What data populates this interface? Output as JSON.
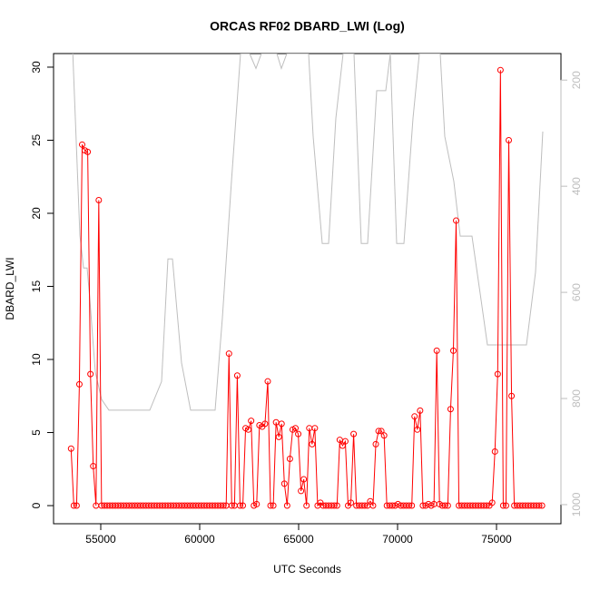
{
  "chart_data": {
    "type": "line",
    "title": "ORCAS RF02 DBARD_LWI (Log)",
    "xlabel": "UTC Seconds",
    "ylabel": "DBARD_LWI",
    "xlim": [
      52615,
      78257
    ],
    "xticks": [
      55000,
      60000,
      65000,
      70000,
      75000
    ],
    "ylim": [
      -1.24,
      30.93
    ],
    "yticks": [
      0,
      5,
      10,
      15,
      20,
      25,
      30
    ],
    "y2lim": [
      1036,
      150
    ],
    "y2ticks": [
      200,
      400,
      600,
      800,
      1000
    ],
    "series": [
      {
        "color": "#ff0000",
        "markers": true,
        "x": [
          53500,
          53640,
          53780,
          53920,
          54060,
          54200,
          54340,
          54480,
          54620,
          54760,
          54900,
          55040,
          55180,
          55320,
          55460,
          55600,
          55740,
          55880,
          56020,
          56160,
          56300,
          56440,
          56580,
          56720,
          56860,
          57000,
          57140,
          57280,
          57420,
          57560,
          57700,
          57840,
          57980,
          58120,
          58260,
          58400,
          58540,
          58680,
          58820,
          58960,
          59100,
          59240,
          59380,
          59520,
          59660,
          59800,
          59940,
          60080,
          60220,
          60360,
          60500,
          60640,
          60780,
          60920,
          61060,
          61200,
          61340,
          61480,
          61620,
          61760,
          61900,
          62040,
          62180,
          62320,
          62460,
          62600,
          62740,
          62880,
          63020,
          63160,
          63300,
          63440,
          63580,
          63720,
          63860,
          64000,
          64140,
          64280,
          64420,
          64560,
          64700,
          64840,
          64980,
          65120,
          65260,
          65400,
          65540,
          65680,
          65820,
          65960,
          66100,
          66240,
          66380,
          66520,
          66660,
          66800,
          66940,
          67080,
          67220,
          67360,
          67500,
          67640,
          67780,
          67920,
          68060,
          68200,
          68340,
          68480,
          68620,
          68760,
          68900,
          69040,
          69180,
          69320,
          69460,
          69600,
          69740,
          69880,
          70020,
          70160,
          70300,
          70440,
          70580,
          70720,
          70860,
          71000,
          71140,
          71280,
          71420,
          71560,
          71700,
          71840,
          71980,
          72120,
          72260,
          72400,
          72540,
          72680,
          72820,
          72960,
          73100,
          73240,
          73380,
          73520,
          73660,
          73800,
          73940,
          74080,
          74220,
          74360,
          74500,
          74640,
          74780,
          74920,
          75060,
          75200,
          75340,
          75480,
          75620,
          75760,
          75900,
          76040,
          76180,
          76320,
          76460,
          76600,
          76740,
          76880,
          77020,
          77160,
          77300
        ],
        "values": [
          3.9,
          0,
          0,
          8.3,
          24.7,
          24.3,
          24.2,
          9.0,
          2.7,
          0,
          20.9,
          0,
          0,
          0,
          0,
          0,
          0,
          0,
          0,
          0,
          0,
          0,
          0,
          0,
          0,
          0,
          0,
          0,
          0,
          0,
          0,
          0,
          0,
          0,
          0,
          0,
          0,
          0,
          0,
          0,
          0,
          0,
          0,
          0,
          0,
          0,
          0,
          0,
          0,
          0,
          0,
          0,
          0,
          0,
          0,
          0,
          0,
          10.4,
          0,
          0,
          8.9,
          0,
          0,
          5.3,
          5.2,
          5.8,
          0,
          0.1,
          5.5,
          5.4,
          5.6,
          8.5,
          0,
          0,
          5.7,
          4.7,
          5.6,
          1.5,
          0,
          3.2,
          5.2,
          5.3,
          4.9,
          1.0,
          1.8,
          0,
          5.3,
          4.2,
          5.3,
          0,
          0.2,
          0,
          0,
          0,
          0,
          0,
          0,
          4.5,
          4.1,
          4.4,
          0,
          0.2,
          4.9,
          0,
          0,
          0,
          0,
          0,
          0.3,
          0,
          4.2,
          5.1,
          5.1,
          4.8,
          0,
          0,
          0,
          0,
          0.1,
          0,
          0,
          0,
          0,
          0,
          6.1,
          5.2,
          6.5,
          0,
          0,
          0.1,
          0,
          0.1,
          10.6,
          0.1,
          0,
          0,
          0,
          6.6,
          10.6,
          19.5,
          0,
          0,
          0,
          0,
          0,
          0,
          0,
          0,
          0,
          0,
          0,
          0,
          0.2,
          3.7,
          9.0,
          29.8,
          0,
          0,
          25.0,
          7.5,
          0,
          0,
          0,
          0,
          0,
          0,
          0,
          0,
          0,
          0,
          0
        ]
      },
      {
        "color": "#bebebe",
        "axis": "y2",
        "x": [
          53578,
          53945,
          54129,
          54312,
          54450,
          54725,
          55046,
          55413,
          57477,
          58074,
          58395,
          58624,
          59083,
          59541,
          60780,
          61147,
          61605,
          62064,
          62523,
          62844,
          63119,
          63899,
          64128,
          64404,
          65504,
          65734,
          66193,
          66514,
          66881,
          67248,
          67798,
          68165,
          68486,
          68945,
          69403,
          69633,
          69954,
          70321,
          70780,
          71101,
          72156,
          72385,
          72844,
          73165,
          73761,
          74220,
          74541,
          76513,
          76972,
          77339
        ],
        "values": [
          140,
          492,
          554,
          554,
          614,
          750,
          802,
          822,
          822,
          768,
          537,
          537,
          733,
          822,
          822,
          648,
          391,
          150,
          150,
          178,
          150,
          150,
          178,
          150,
          150,
          306,
          508,
          508,
          272,
          150,
          150,
          508,
          508,
          220,
          220,
          150,
          508,
          508,
          272,
          150,
          150,
          306,
          391,
          494,
          494,
          614,
          699,
          699,
          562,
          297
        ]
      }
    ]
  }
}
